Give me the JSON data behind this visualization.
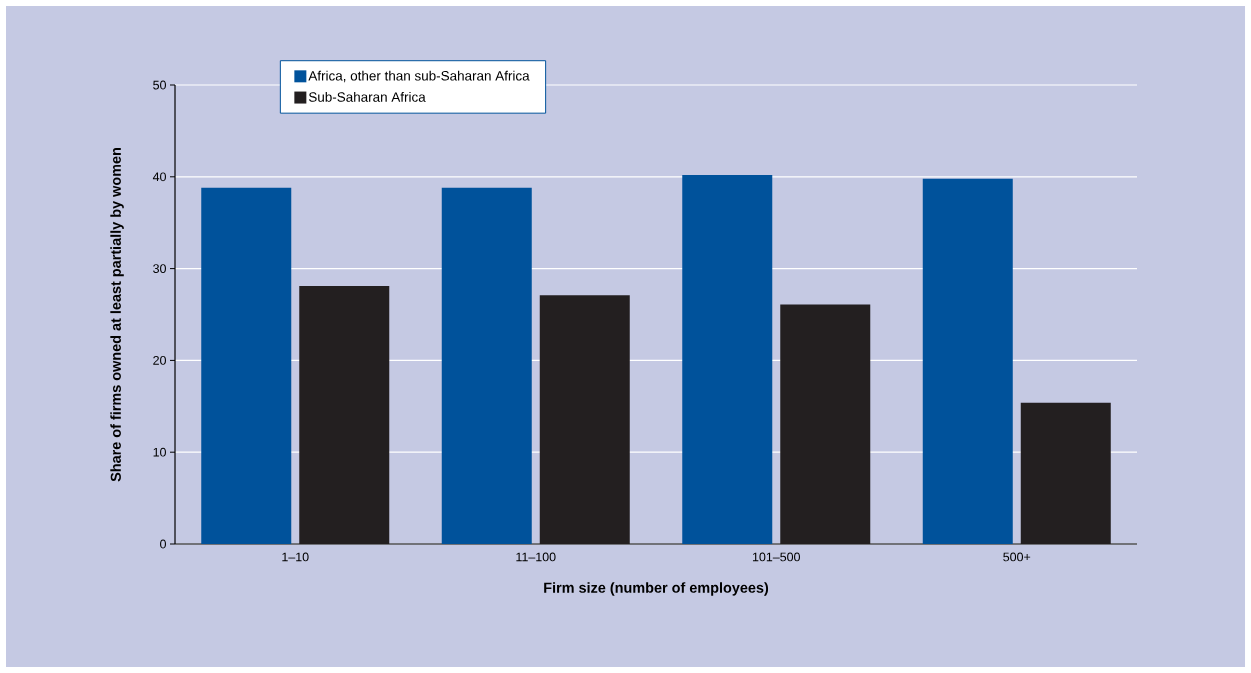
{
  "chart_data": {
    "type": "bar",
    "xlabel": "Firm size (number of employees)",
    "ylabel": "Share of  firms owned at least partially by women",
    "categories": [
      "1–10",
      "11–100",
      "101–500",
      "500+"
    ],
    "series": [
      {
        "name": "Africa, other than sub-Saharan Africa",
        "color": "#00529b",
        "values": [
          38.8,
          38.8,
          40.2,
          39.8
        ]
      },
      {
        "name": "Sub-Saharan Africa",
        "color": "#231f20",
        "values": [
          28.1,
          27.1,
          26.1,
          15.4
        ]
      }
    ],
    "ylim": [
      0,
      50
    ],
    "yticks": [
      0,
      10,
      20,
      30,
      40,
      50
    ],
    "grid": "y",
    "legend": "top left"
  }
}
